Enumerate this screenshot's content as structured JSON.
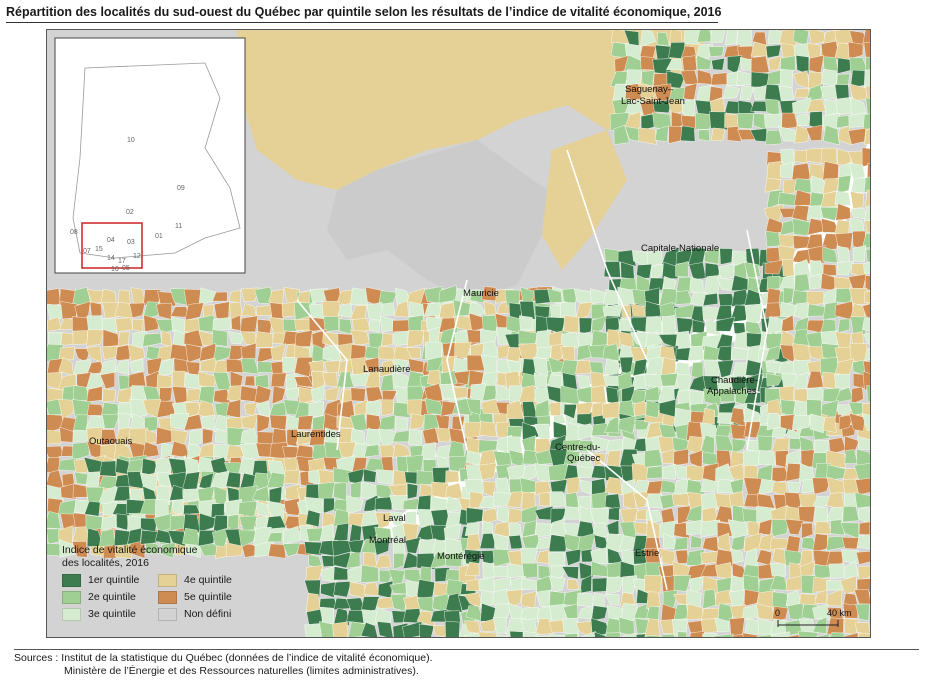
{
  "title": "Répartition des localités du sud-ouest du Québec par quintile selon les résultats de l’indice de vitalité économique, 2016",
  "colors": {
    "q1": "#3d7c4f",
    "q2": "#9fcf92",
    "q3": "#d6ecd0",
    "q4": "#e5d195",
    "q5": "#cf8c52",
    "undefined": "#d3d3d3",
    "boundary": "#ffffff"
  },
  "map": {
    "region_labels": [
      "Saguenay–",
      "Lac-Saint-Jean",
      "Capitale-Nationale",
      "Mauricie",
      "Lanaudière",
      "Chaudière-",
      "Appalaches",
      "Outaouais",
      "Laurentides",
      "Centre-du-",
      "Québec",
      "Laval",
      "Montréal",
      "Montérégie",
      "Estrie"
    ],
    "inset_labels": [
      "10",
      "09",
      "02",
      "08",
      "04",
      "03",
      "01",
      "11",
      "07",
      "15",
      "14",
      "12",
      "17",
      "16",
      "05"
    ],
    "scale": {
      "start": "0",
      "end": "40 km"
    }
  },
  "legend": {
    "title_line1": "Indice de vitalité économique",
    "title_line2": "des localités, 2016",
    "items": [
      {
        "label": "1er quintile",
        "color_key": "q1"
      },
      {
        "label": "4e quintile",
        "color_key": "q4"
      },
      {
        "label": "2e quintile",
        "color_key": "q2"
      },
      {
        "label": "5e quintile",
        "color_key": "q5"
      },
      {
        "label": "3e quintile",
        "color_key": "q3"
      },
      {
        "label": "Non défini",
        "color_key": "undefined"
      }
    ]
  },
  "sources": {
    "line1": "Sources : Institut de la statistique du Québec (données de l’indice de vitalité économique).",
    "line2": "Ministère de l’Énergie et des Ressources naturelles (limites administratives)."
  }
}
